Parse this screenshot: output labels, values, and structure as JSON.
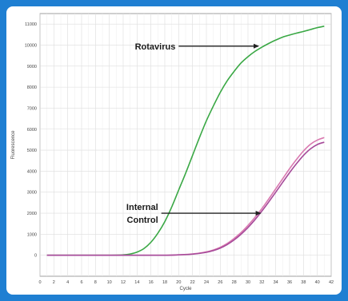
{
  "chart_data": {
    "type": "line",
    "title": "",
    "xlabel": "Cycle",
    "ylabel": "Fluorescence",
    "xlim": [
      0,
      42
    ],
    "ylim": [
      -1000,
      11500
    ],
    "x_ticks": [
      0,
      2,
      4,
      6,
      8,
      10,
      12,
      14,
      16,
      18,
      20,
      22,
      24,
      26,
      28,
      30,
      32,
      34,
      36,
      38,
      40,
      42
    ],
    "y_ticks": [
      0,
      1000,
      2000,
      3000,
      4000,
      5000,
      6000,
      7000,
      8000,
      9000,
      10000,
      11000
    ],
    "grid": true,
    "legend": "none",
    "series": [
      {
        "color": "#3aa845",
        "points": [
          [
            1,
            0
          ],
          [
            10,
            0
          ],
          [
            12,
            20
          ],
          [
            13,
            60
          ],
          [
            14,
            150
          ],
          [
            15,
            320
          ],
          [
            16,
            620
          ],
          [
            17,
            1050
          ],
          [
            18,
            1600
          ],
          [
            19,
            2300
          ],
          [
            20,
            3100
          ],
          [
            21,
            3900
          ],
          [
            22,
            4750
          ],
          [
            23,
            5600
          ],
          [
            24,
            6400
          ],
          [
            25,
            7100
          ],
          [
            26,
            7750
          ],
          [
            27,
            8300
          ],
          [
            28,
            8750
          ],
          [
            29,
            9150
          ],
          [
            30,
            9450
          ],
          [
            31,
            9700
          ],
          [
            32,
            9900
          ],
          [
            33,
            10080
          ],
          [
            34,
            10240
          ],
          [
            35,
            10380
          ],
          [
            36,
            10480
          ],
          [
            37,
            10570
          ],
          [
            38,
            10650
          ],
          [
            39,
            10740
          ],
          [
            40,
            10830
          ],
          [
            41,
            10900
          ]
        ]
      },
      {
        "color": "#d979b0",
        "points": [
          [
            1,
            0
          ],
          [
            16,
            0
          ],
          [
            18,
            0
          ],
          [
            20,
            20
          ],
          [
            22,
            60
          ],
          [
            24,
            160
          ],
          [
            25,
            250
          ],
          [
            26,
            380
          ],
          [
            27,
            560
          ],
          [
            28,
            800
          ],
          [
            29,
            1080
          ],
          [
            30,
            1420
          ],
          [
            31,
            1800
          ],
          [
            32,
            2220
          ],
          [
            33,
            2680
          ],
          [
            34,
            3160
          ],
          [
            35,
            3640
          ],
          [
            36,
            4120
          ],
          [
            37,
            4560
          ],
          [
            38,
            4960
          ],
          [
            39,
            5280
          ],
          [
            40,
            5480
          ],
          [
            41,
            5600
          ]
        ]
      },
      {
        "color": "#a64a9a",
        "points": [
          [
            1,
            0
          ],
          [
            16,
            0
          ],
          [
            18,
            0
          ],
          [
            20,
            20
          ],
          [
            22,
            50
          ],
          [
            24,
            140
          ],
          [
            25,
            220
          ],
          [
            26,
            340
          ],
          [
            27,
            510
          ],
          [
            28,
            730
          ],
          [
            29,
            1000
          ],
          [
            30,
            1320
          ],
          [
            31,
            1690
          ],
          [
            32,
            2100
          ],
          [
            33,
            2540
          ],
          [
            34,
            3000
          ],
          [
            35,
            3470
          ],
          [
            36,
            3930
          ],
          [
            37,
            4360
          ],
          [
            38,
            4750
          ],
          [
            39,
            5060
          ],
          [
            40,
            5270
          ],
          [
            41,
            5380
          ]
        ]
      }
    ],
    "annotations": [
      {
        "id": "rotavirus",
        "text": "Rotavirus",
        "arrow_from": [
          20,
          9950
        ],
        "arrow_to": [
          31.5,
          9950
        ]
      },
      {
        "id": "internal-control",
        "text": "Internal Control",
        "lines": [
          "Internal",
          "Control"
        ],
        "arrow_from": [
          17.5,
          2000
        ],
        "arrow_to": [
          31.8,
          2000
        ]
      }
    ]
  }
}
